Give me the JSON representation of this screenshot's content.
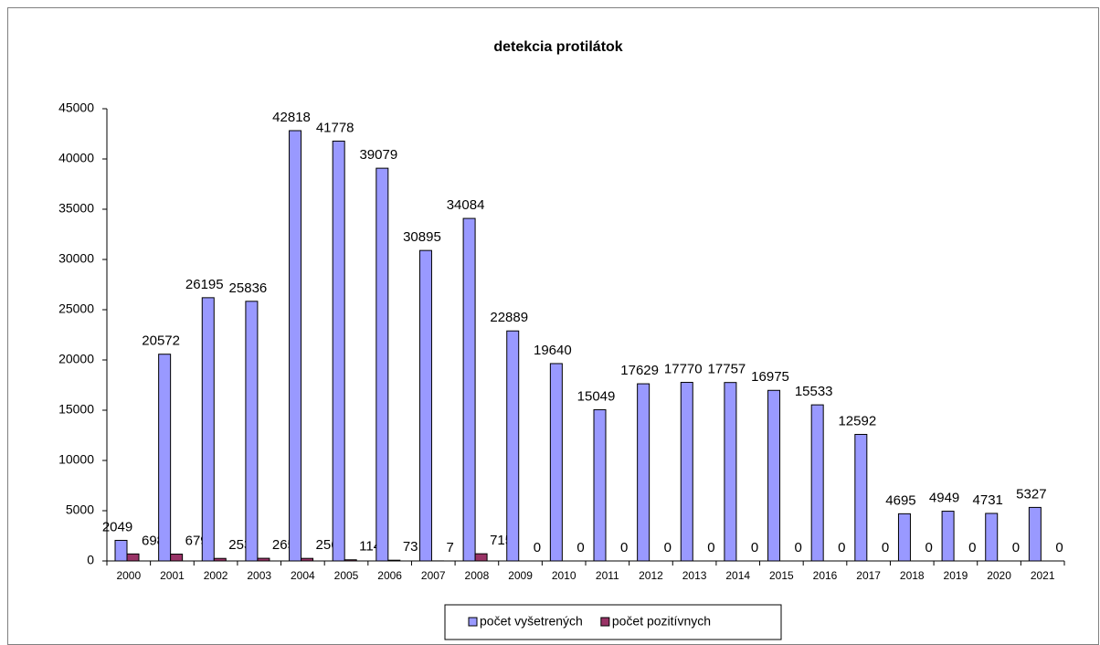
{
  "chart_data": {
    "type": "bar",
    "title": "detekcia protilátok",
    "categories": [
      "2000",
      "2001",
      "2002",
      "2003",
      "2004",
      "2005",
      "2006",
      "2007",
      "2008",
      "2009",
      "2010",
      "2011",
      "2012",
      "2013",
      "2014",
      "2015",
      "2016",
      "2017",
      "2018",
      "2019",
      "2020",
      "2021"
    ],
    "series": [
      {
        "name": "počet vyšetrených",
        "color": "#9999ff",
        "values": [
          2049,
          20572,
          26195,
          25836,
          42818,
          41778,
          39079,
          30895,
          34084,
          22889,
          19640,
          15049,
          17629,
          17770,
          17757,
          16975,
          15533,
          12592,
          4695,
          4949,
          4731,
          5327
        ]
      },
      {
        "name": "počet pozitívnych",
        "color": "#993366",
        "values": [
          698,
          679,
          253,
          265,
          256,
          114,
          73,
          7,
          715,
          0,
          0,
          0,
          0,
          0,
          0,
          0,
          0,
          0,
          0,
          0,
          0,
          0
        ]
      }
    ],
    "ylim": [
      0,
      45000
    ],
    "yticks": [
      0,
      5000,
      10000,
      15000,
      20000,
      25000,
      30000,
      35000,
      40000,
      45000
    ],
    "grid": false,
    "legend": "bottom"
  }
}
